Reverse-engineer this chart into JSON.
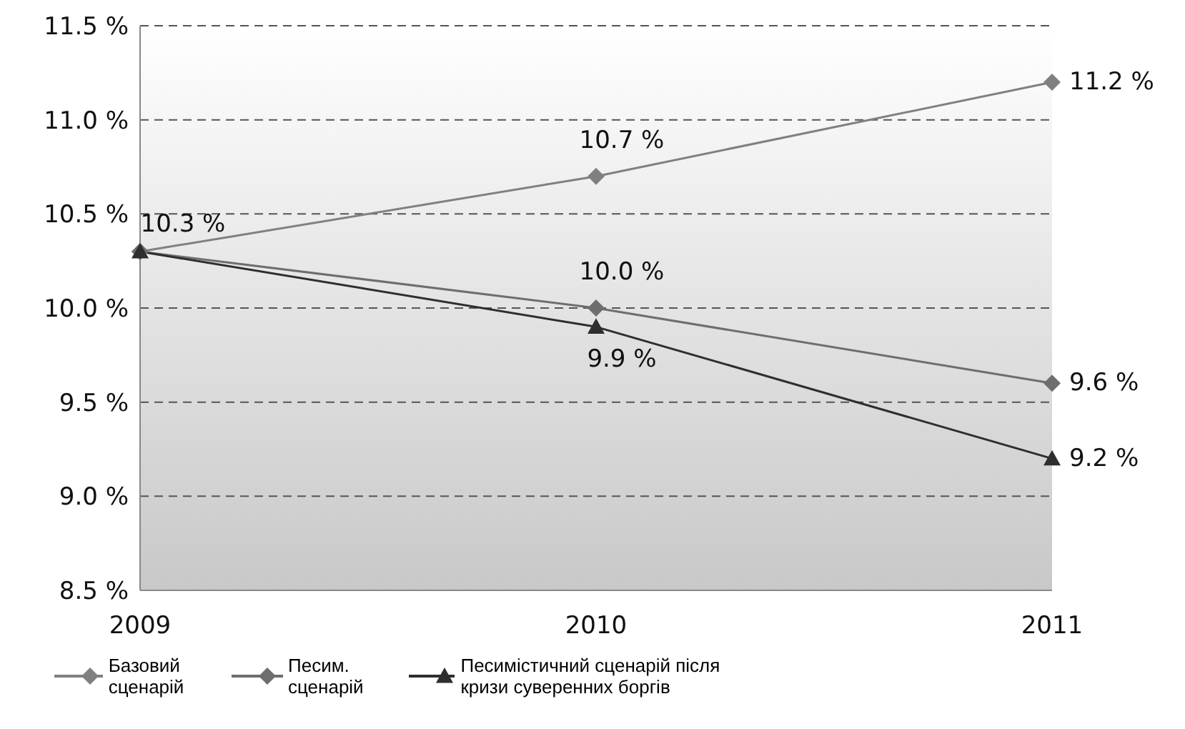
{
  "chart_data": {
    "type": "line",
    "categories": [
      "2009",
      "2010",
      "2011"
    ],
    "series": [
      {
        "name": "Базовий сценарій",
        "color": "#808080",
        "marker": "diamond",
        "values": [
          10.3,
          10.7,
          11.2
        ],
        "value_labels": [
          "10.3 %",
          "10.7 %",
          "11.2 %"
        ]
      },
      {
        "name": "Песим. сценарій",
        "color": "#6e6e6e",
        "marker": "diamond",
        "values": [
          10.3,
          10.0,
          9.6
        ],
        "value_labels": [
          null,
          "10.0 %",
          "9.6 %"
        ]
      },
      {
        "name": "Песимістичний сценарій після кризи суверенних боргів",
        "color": "#2e2e2e",
        "marker": "triangle",
        "values": [
          10.3,
          9.9,
          9.2
        ],
        "value_labels": [
          null,
          "9.9 %",
          "9.2 %"
        ]
      }
    ],
    "ylim": [
      8.5,
      11.5
    ],
    "yticks": [
      {
        "value": 8.5,
        "label": "8.5 %"
      },
      {
        "value": 9,
        "label": "9.0 %"
      },
      {
        "value": 9.5,
        "label": "9.5 %"
      },
      {
        "value": 10,
        "label": "10.0 %"
      },
      {
        "value": 10.5,
        "label": "10.5 %"
      },
      {
        "value": 11,
        "label": "11.0 %"
      },
      {
        "value": 11.5,
        "label": "11.5 %"
      }
    ],
    "grid": "y",
    "line_style": "solid",
    "legend": "bottom left"
  }
}
